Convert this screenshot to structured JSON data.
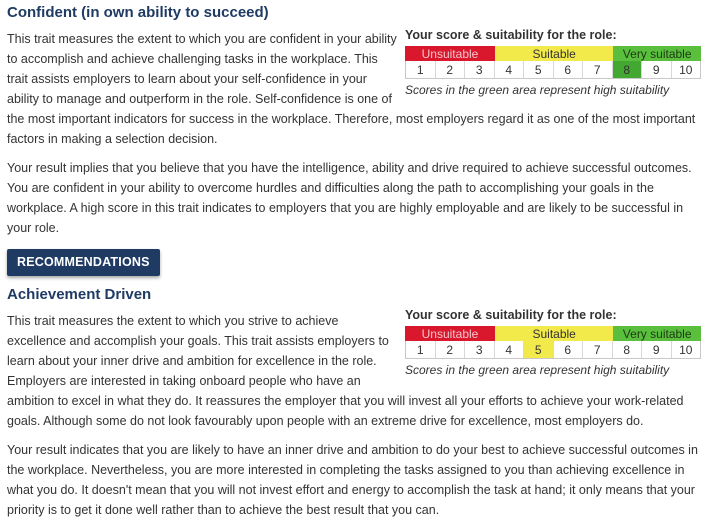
{
  "sections": [
    {
      "title": "Confident (in own ability to succeed)",
      "score_title": "Your score & suitability for the role:",
      "bands": [
        "Unsuitable",
        "Suitable",
        "Very suitable"
      ],
      "scale": [
        "1",
        "2",
        "3",
        "4",
        "5",
        "6",
        "7",
        "8",
        "9",
        "10"
      ],
      "selected_score": 8,
      "selected_zone": "Very suitable",
      "note": "Scores in the green area represent high suitability",
      "description": "This trait measures the extent to which you are confident in your ability to accomplish and achieve challenging tasks in the workplace. This trait assists employers to learn about your self-confidence in your ability to manage and outperform in the role. Self-confidence is one of the most important indicators for success in the workplace. Therefore, most employers regard it as one of the most important factors in making a selection decision.",
      "result": "Your result implies that you believe that you have the intelligence, ability and drive required to achieve successful outcomes. You are confident in your ability to overcome hurdles and difficulties along the path to accomplishing your goals in the workplace. A high score in this trait indicates to employers that you are highly employable and are likely to be successful in your role."
    },
    {
      "title": "Achievement Driven",
      "score_title": "Your score & suitability for the role:",
      "bands": [
        "Unsuitable",
        "Suitable",
        "Very suitable"
      ],
      "scale": [
        "1",
        "2",
        "3",
        "4",
        "5",
        "6",
        "7",
        "8",
        "9",
        "10"
      ],
      "selected_score": 5,
      "selected_zone": "Suitable",
      "note": "Scores in the green area represent high suitability",
      "description": "This trait measures the extent to which you strive to achieve excellence and accomplish your goals. This trait assists employers to learn about your inner drive and ambition for excellence in the role. Employers are interested in taking onboard people who have an ambition to excel in what they do. It reassures the employer that you will invest all your efforts to achieve your work-related goals. Although some do not look favourably upon people with an extreme drive for excellence, most employers do.",
      "result": "Your result indicates that you are likely to have an inner drive and ambition to do your best to achieve successful outcomes in the workplace. Nevertheless, you are more interested in completing the tasks assigned to you than achieving excellence in what you do. It doesn't mean that you will not invest effort and energy to accomplish the task at hand; it only means that your priority is to get it done well rather than to achieve the best result that you can."
    }
  ],
  "recommendations_button": "RECOMMENDATIONS",
  "colors": {
    "heading": "#1f3b64",
    "unsuitable": "#d9182d",
    "suitable": "#f2e94b",
    "very_suitable": "#5bbf3e",
    "button_bg": "#1f3b64"
  }
}
